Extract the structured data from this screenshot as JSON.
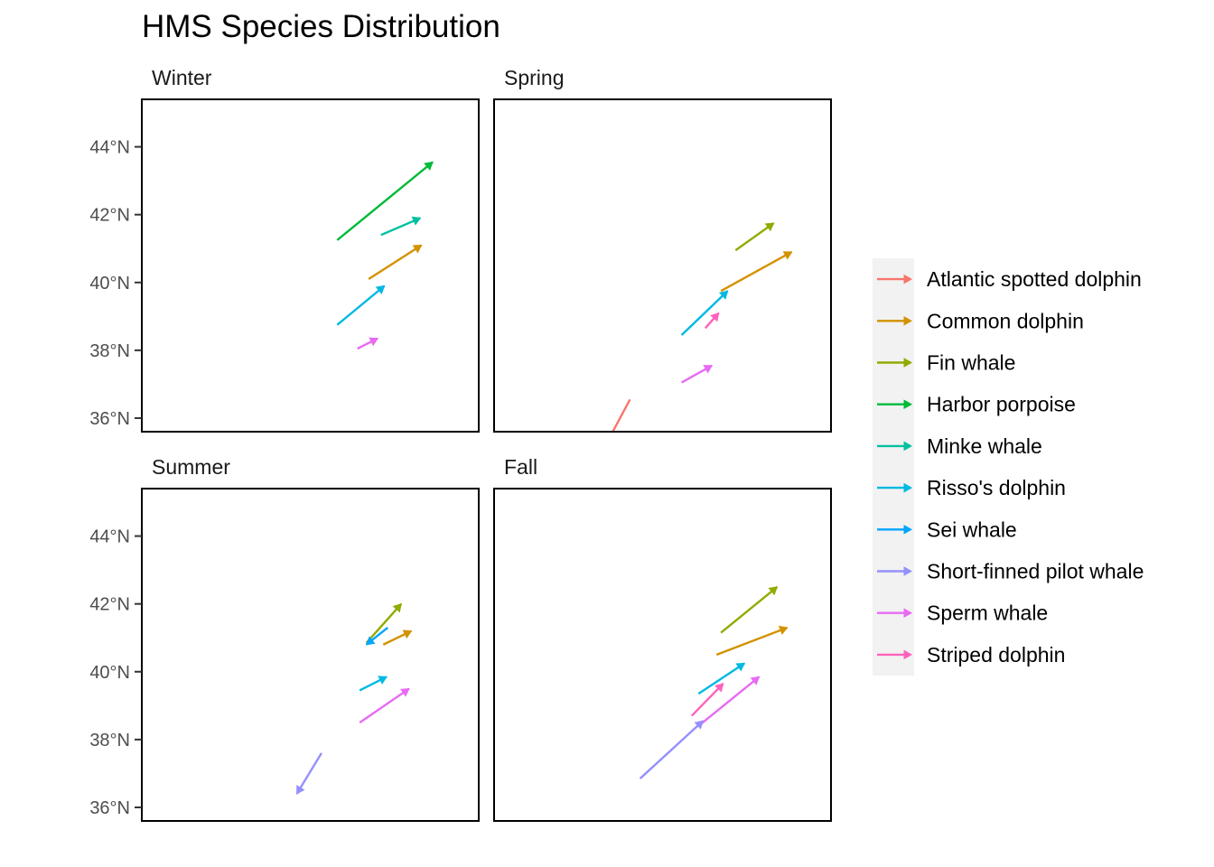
{
  "chart_data": {
    "type": "segment-arrows",
    "title": "HMS Species Distribution",
    "ylabel_format": "°N",
    "ylim": [
      35.6,
      45.4
    ],
    "xlim": [
      -80,
      -65
    ],
    "y_ticks": [
      36,
      38,
      40,
      42,
      44
    ],
    "y_tick_labels": [
      "36°N",
      "38°N",
      "40°N",
      "42°N",
      "44°N"
    ],
    "legend_title": "",
    "species": [
      {
        "name": "Atlantic spotted dolphin",
        "color": "#F8766D"
      },
      {
        "name": "Common dolphin",
        "color": "#D39200"
      },
      {
        "name": "Fin whale",
        "color": "#93AA00"
      },
      {
        "name": "Harbor porpoise",
        "color": "#00BA38"
      },
      {
        "name": "Minke whale",
        "color": "#00C19F"
      },
      {
        "name": "Risso's dolphin",
        "color": "#00B9E3"
      },
      {
        "name": "Sei whale",
        "color": "#00A5FF"
      },
      {
        "name": "Short-finned pilot whale",
        "color": "#9590FF"
      },
      {
        "name": "Sperm whale",
        "color": "#E76BF3"
      },
      {
        "name": "Striped dolphin",
        "color": "#FF62BC"
      }
    ],
    "panels": [
      {
        "season": "Winter",
        "arrows": [
          {
            "species": "Harbor porpoise",
            "from": [
              -71.3,
              41.25
            ],
            "to": [
              -67.05,
              43.55
            ]
          },
          {
            "species": "Minke whale",
            "from": [
              -69.35,
              41.4
            ],
            "to": [
              -67.6,
              41.9
            ]
          },
          {
            "species": "Common dolphin",
            "from": [
              -69.9,
              40.1
            ],
            "to": [
              -67.55,
              41.1
            ]
          },
          {
            "species": "Risso's dolphin",
            "from": [
              -71.3,
              38.75
            ],
            "to": [
              -69.2,
              39.9
            ]
          },
          {
            "species": "Sperm whale",
            "from": [
              -70.4,
              38.05
            ],
            "to": [
              -69.5,
              38.35
            ]
          }
        ]
      },
      {
        "season": "Spring",
        "arrows": [
          {
            "species": "Fin whale",
            "from": [
              -69.25,
              40.95
            ],
            "to": [
              -67.55,
              41.75
            ]
          },
          {
            "species": "Common dolphin",
            "from": [
              -69.9,
              39.75
            ],
            "to": [
              -66.75,
              40.9
            ]
          },
          {
            "species": "Risso's dolphin",
            "from": [
              -71.65,
              38.45
            ],
            "to": [
              -69.6,
              39.75
            ]
          },
          {
            "species": "Striped dolphin",
            "from": [
              -70.6,
              38.65
            ],
            "to": [
              -70.0,
              39.1
            ]
          },
          {
            "species": "Sperm whale",
            "from": [
              -71.65,
              37.05
            ],
            "to": [
              -70.3,
              37.55
            ]
          },
          {
            "species": "Atlantic spotted dolphin",
            "from": [
              -73.95,
              36.55
            ],
            "to": [
              -75.2,
              35.0
            ]
          }
        ]
      },
      {
        "season": "Summer",
        "arrows": [
          {
            "species": "Fin whale",
            "from": [
              -70.0,
              40.85
            ],
            "to": [
              -68.45,
              42.0
            ]
          },
          {
            "species": "Sei whale",
            "from": [
              -69.05,
              41.3
            ],
            "to": [
              -70.0,
              40.8
            ]
          },
          {
            "species": "Common dolphin",
            "from": [
              -69.25,
              40.8
            ],
            "to": [
              -68.0,
              41.2
            ]
          },
          {
            "species": "Risso's dolphin",
            "from": [
              -70.3,
              39.45
            ],
            "to": [
              -69.1,
              39.85
            ]
          },
          {
            "species": "Sperm whale",
            "from": [
              -70.3,
              38.5
            ],
            "to": [
              -68.1,
              39.5
            ]
          },
          {
            "species": "Short-finned pilot whale",
            "from": [
              -72.0,
              37.6
            ],
            "to": [
              -73.1,
              36.4
            ]
          }
        ]
      },
      {
        "season": "Fall",
        "arrows": [
          {
            "species": "Fin whale",
            "from": [
              -69.9,
              41.15
            ],
            "to": [
              -67.4,
              42.5
            ]
          },
          {
            "species": "Common dolphin",
            "from": [
              -70.1,
              40.5
            ],
            "to": [
              -66.95,
              41.3
            ]
          },
          {
            "species": "Risso's dolphin",
            "from": [
              -70.9,
              39.35
            ],
            "to": [
              -68.85,
              40.25
            ]
          },
          {
            "species": "Striped dolphin",
            "from": [
              -71.2,
              38.7
            ],
            "to": [
              -69.8,
              39.65
            ]
          },
          {
            "species": "Sperm whale",
            "from": [
              -70.9,
              38.4
            ],
            "to": [
              -68.2,
              39.85
            ]
          },
          {
            "species": "Short-finned pilot whale",
            "from": [
              -73.5,
              36.85
            ],
            "to": [
              -70.7,
              38.55
            ]
          }
        ]
      }
    ]
  }
}
